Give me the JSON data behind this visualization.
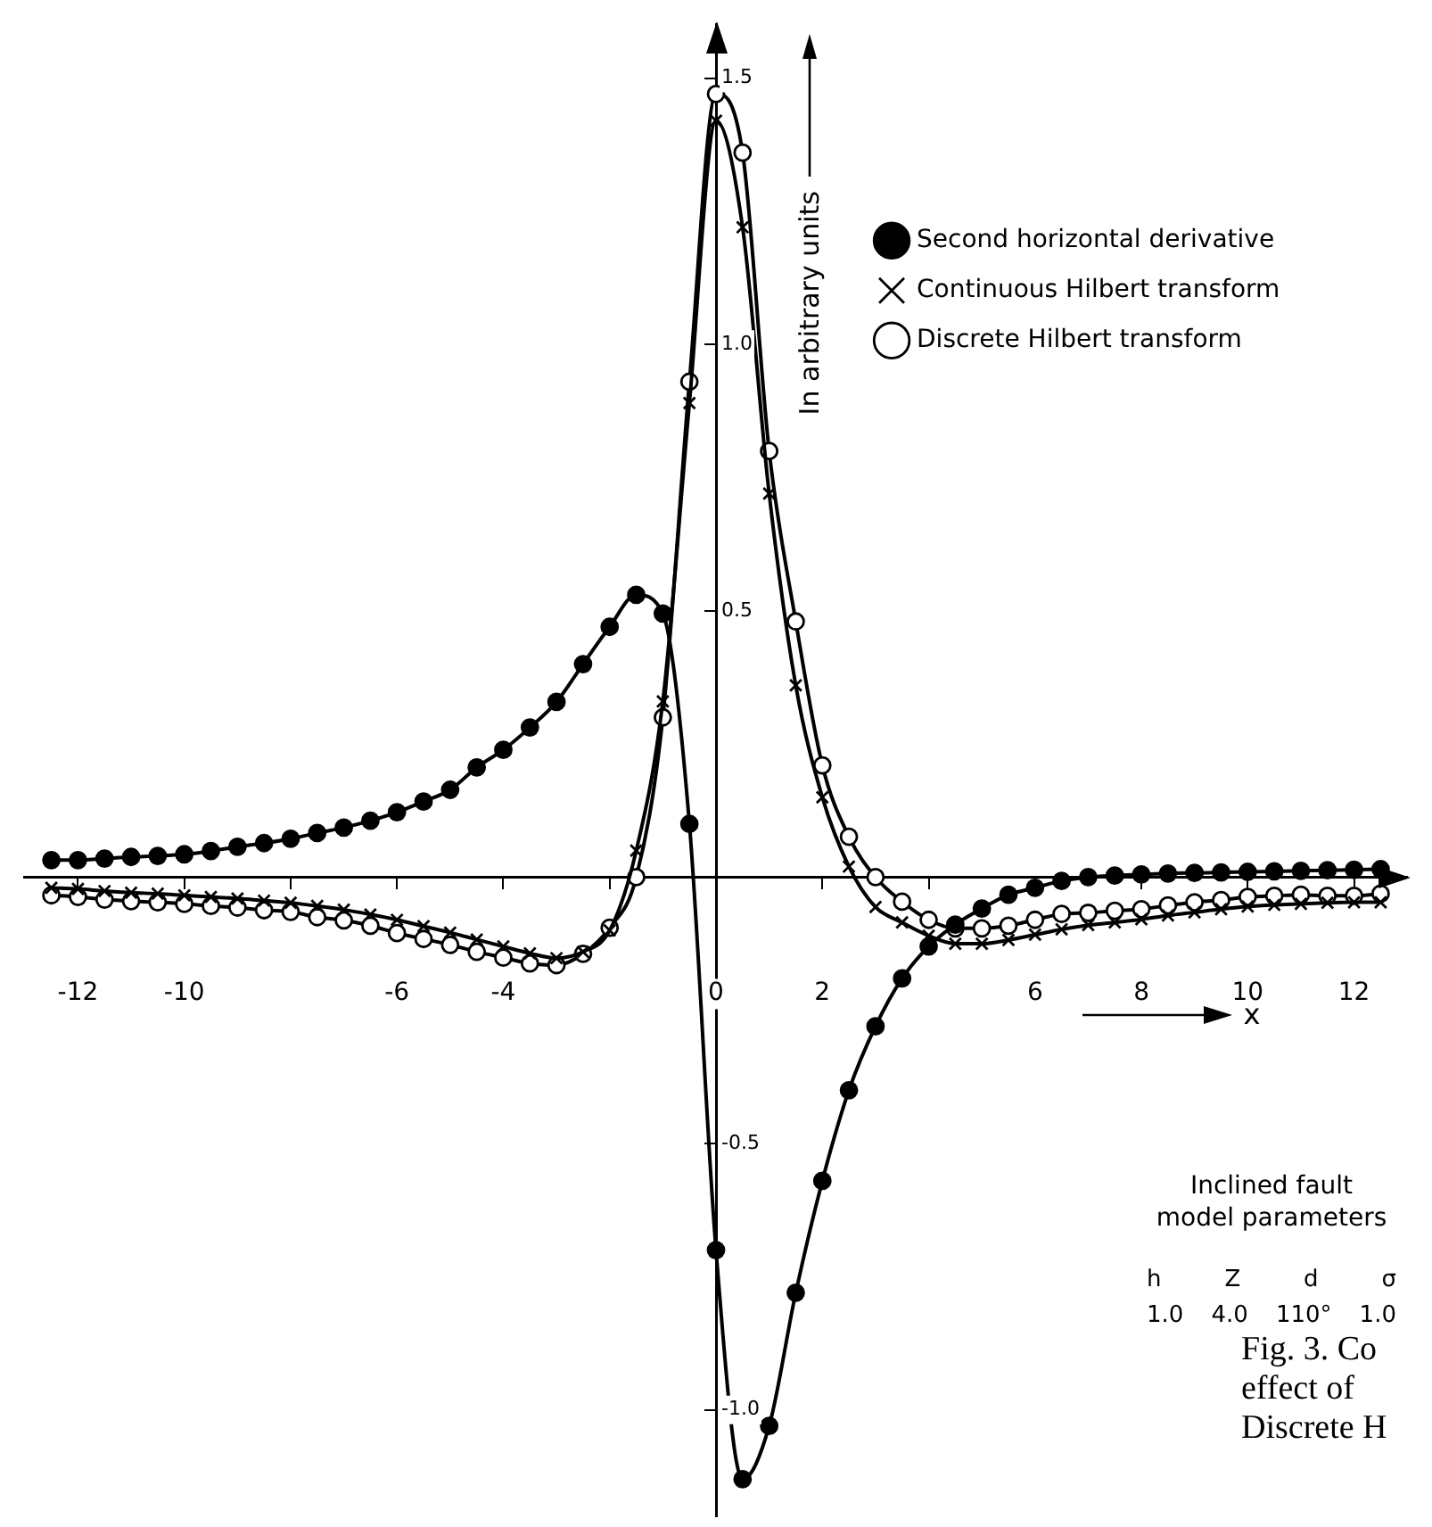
{
  "chart_data": {
    "type": "line",
    "ylabel": "In arbitrary units",
    "xlabel": "x",
    "x": [
      -12.5,
      -12,
      -11.5,
      -11,
      -10.5,
      -10,
      -9.5,
      -9,
      -8.5,
      -8,
      -7.5,
      -7,
      -6.5,
      -6,
      -5.5,
      -5,
      -4.5,
      -4,
      -3.5,
      -3,
      -2.5,
      -2,
      -1.5,
      -1,
      -0.5,
      0,
      0.5,
      1,
      1.5,
      2,
      2.5,
      3,
      3.5,
      4,
      4.5,
      5,
      5.5,
      6,
      6.5,
      7,
      7.5,
      8,
      8.5,
      9,
      9.5,
      10,
      10.5,
      11,
      11.5,
      12,
      12.5
    ],
    "series": [
      {
        "name": "Second horizontal derivative",
        "color": "#000000",
        "marker": "circle",
        "values": [
          0.032,
          0.032,
          0.035,
          0.038,
          0.04,
          0.043,
          0.049,
          0.057,
          0.064,
          0.072,
          0.083,
          0.093,
          0.106,
          0.122,
          0.142,
          0.164,
          0.206,
          0.239,
          0.281,
          0.329,
          0.4,
          0.47,
          0.53,
          0.495,
          0.1,
          -0.7,
          -1.13,
          -1.03,
          -0.78,
          -0.57,
          -0.4,
          -0.28,
          -0.19,
          -0.13,
          -0.089,
          -0.059,
          -0.033,
          -0.02,
          -0.007,
          0.0,
          0.003,
          0.005,
          0.007,
          0.008,
          0.009,
          0.01,
          0.011,
          0.012,
          0.013,
          0.014,
          0.015
        ]
      },
      {
        "name": "Continuous Hilbert transform",
        "color": "#000000",
        "marker": "cross",
        "values": [
          -0.02,
          -0.022,
          -0.026,
          -0.029,
          -0.031,
          -0.034,
          -0.037,
          -0.04,
          -0.044,
          -0.048,
          -0.054,
          -0.061,
          -0.07,
          -0.08,
          -0.092,
          -0.104,
          -0.117,
          -0.13,
          -0.143,
          -0.152,
          -0.14,
          -0.1,
          0.05,
          0.33,
          0.89,
          1.42,
          1.22,
          0.72,
          0.36,
          0.15,
          0.02,
          -0.056,
          -0.085,
          -0.11,
          -0.125,
          -0.125,
          -0.118,
          -0.108,
          -0.098,
          -0.09,
          -0.085,
          -0.079,
          -0.072,
          -0.066,
          -0.06,
          -0.055,
          -0.052,
          -0.05,
          -0.048,
          -0.047,
          -0.047
        ]
      },
      {
        "name": "Discrete Hilbert transform",
        "color": "#000000",
        "marker": "circle",
        "values": [
          -0.034,
          -0.037,
          -0.042,
          -0.045,
          -0.047,
          -0.05,
          -0.054,
          -0.057,
          -0.062,
          -0.065,
          -0.075,
          -0.081,
          -0.091,
          -0.105,
          -0.116,
          -0.127,
          -0.14,
          -0.151,
          -0.162,
          -0.165,
          -0.144,
          -0.095,
          0.0,
          0.3,
          0.93,
          1.47,
          1.36,
          0.8,
          0.48,
          0.21,
          0.076,
          0.0,
          -0.046,
          -0.08,
          -0.096,
          -0.096,
          -0.091,
          -0.08,
          -0.069,
          -0.067,
          -0.063,
          -0.06,
          -0.053,
          -0.047,
          -0.043,
          -0.037,
          -0.035,
          -0.033,
          -0.035,
          -0.035,
          -0.031
        ]
      }
    ],
    "xlim": [
      -13,
      13
    ],
    "ylim": [
      -1.2,
      1.6
    ],
    "xticks": [
      -12,
      -10,
      {
        "value": -8,
        "label": null
      },
      -6,
      -4,
      {
        "value": -2,
        "label": null
      },
      0,
      2,
      {
        "value": 4,
        "label": null
      },
      6,
      8,
      10,
      12
    ],
    "yticks": [
      {
        "value": -1,
        "label": "-1.0"
      },
      -0.5,
      0.5,
      {
        "value": 1,
        "label": "1.0"
      },
      1.5
    ],
    "grid": false,
    "legend": "top right",
    "annotations": [
      "Inclined fault\nmodel parameters",
      "h Z d σ",
      "1.0 4.0 110° 1.0",
      "Fig. 3. Co\neffect of\nDiscrete H"
    ]
  }
}
